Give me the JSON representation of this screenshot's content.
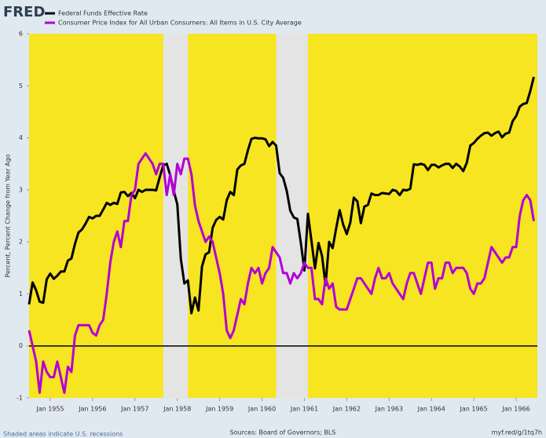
{
  "chart_data": {
    "type": "line",
    "logo": "FRED",
    "y_label": "Percent, Percent Change from Year Ago",
    "note": "Shaded areas indicate U.S. recessions",
    "source": "Sources: Board of Governors; BLS",
    "link": "myf.red/g/1tq7h",
    "background": "#f7e521",
    "recession_color": "#e4e4e4",
    "recessions": [
      {
        "start": "1957-09",
        "end": "1958-04"
      },
      {
        "start": "1960-05",
        "end": "1961-02"
      }
    ],
    "xlim": [
      "1954-07",
      "1966-07"
    ],
    "ylim": [
      -1,
      6
    ],
    "yticks": [
      -1,
      0,
      1,
      2,
      3,
      4,
      5,
      6
    ],
    "xticks": [
      {
        "value": "1955-01",
        "label": "Jan 1955"
      },
      {
        "value": "1956-01",
        "label": "Jan 1956"
      },
      {
        "value": "1957-01",
        "label": "Jan 1957"
      },
      {
        "value": "1958-01",
        "label": "Jan 1958"
      },
      {
        "value": "1959-01",
        "label": "Jan 1959"
      },
      {
        "value": "1960-01",
        "label": "Jan 1960"
      },
      {
        "value": "1961-01",
        "label": "Jan 1961"
      },
      {
        "value": "1962-01",
        "label": "Jan 1962"
      },
      {
        "value": "1963-01",
        "label": "Jan 1963"
      },
      {
        "value": "1964-01",
        "label": "Jan 1964"
      },
      {
        "value": "1965-01",
        "label": "Jan 1965"
      },
      {
        "value": "1966-01",
        "label": "Jan 1966"
      }
    ],
    "x": [
      "1954-07",
      "1954-08",
      "1954-09",
      "1954-10",
      "1954-11",
      "1954-12",
      "1955-01",
      "1955-02",
      "1955-03",
      "1955-04",
      "1955-05",
      "1955-06",
      "1955-07",
      "1955-08",
      "1955-09",
      "1955-10",
      "1955-11",
      "1955-12",
      "1956-01",
      "1956-02",
      "1956-03",
      "1956-04",
      "1956-05",
      "1956-06",
      "1956-07",
      "1956-08",
      "1956-09",
      "1956-10",
      "1956-11",
      "1956-12",
      "1957-01",
      "1957-02",
      "1957-03",
      "1957-04",
      "1957-05",
      "1957-06",
      "1957-07",
      "1957-08",
      "1957-09",
      "1957-10",
      "1957-11",
      "1957-12",
      "1958-01",
      "1958-02",
      "1958-03",
      "1958-04",
      "1958-05",
      "1958-06",
      "1958-07",
      "1958-08",
      "1958-09",
      "1958-10",
      "1958-11",
      "1958-12",
      "1959-01",
      "1959-02",
      "1959-03",
      "1959-04",
      "1959-05",
      "1959-06",
      "1959-07",
      "1959-08",
      "1959-09",
      "1959-10",
      "1959-11",
      "1959-12",
      "1960-01",
      "1960-02",
      "1960-03",
      "1960-04",
      "1960-05",
      "1960-06",
      "1960-07",
      "1960-08",
      "1960-09",
      "1960-10",
      "1960-11",
      "1960-12",
      "1961-01",
      "1961-02",
      "1961-03",
      "1961-04",
      "1961-05",
      "1961-06",
      "1961-07",
      "1961-08",
      "1961-09",
      "1961-10",
      "1961-11",
      "1961-12",
      "1962-01",
      "1962-02",
      "1962-03",
      "1962-04",
      "1962-05",
      "1962-06",
      "1962-07",
      "1962-08",
      "1962-09",
      "1962-10",
      "1962-11",
      "1962-12",
      "1963-01",
      "1963-02",
      "1963-03",
      "1963-04",
      "1963-05",
      "1963-06",
      "1963-07",
      "1963-08",
      "1963-09",
      "1963-10",
      "1963-11",
      "1963-12",
      "1964-01",
      "1964-02",
      "1964-03",
      "1964-04",
      "1964-05",
      "1964-06",
      "1964-07",
      "1964-08",
      "1964-09",
      "1964-10",
      "1964-11",
      "1964-12",
      "1965-01",
      "1965-02",
      "1965-03",
      "1965-04",
      "1965-05",
      "1965-06",
      "1965-07",
      "1965-08",
      "1965-09",
      "1965-10",
      "1965-11",
      "1965-12",
      "1966-01",
      "1966-02",
      "1966-03",
      "1966-04",
      "1966-05",
      "1966-06"
    ],
    "series": [
      {
        "name": "Federal Funds Effective Rate",
        "color": "#000000",
        "values": [
          0.8,
          1.22,
          1.07,
          0.85,
          0.83,
          1.28,
          1.39,
          1.29,
          1.35,
          1.43,
          1.43,
          1.64,
          1.68,
          1.96,
          2.18,
          2.24,
          2.35,
          2.48,
          2.45,
          2.5,
          2.5,
          2.62,
          2.75,
          2.71,
          2.75,
          2.73,
          2.95,
          2.96,
          2.88,
          2.94,
          2.84,
          3.0,
          2.96,
          3.0,
          3.0,
          3.0,
          2.99,
          3.24,
          3.47,
          3.5,
          3.28,
          2.98,
          2.72,
          1.67,
          1.2,
          1.26,
          0.63,
          0.93,
          0.68,
          1.53,
          1.76,
          1.8,
          2.27,
          2.42,
          2.48,
          2.43,
          2.8,
          2.96,
          2.9,
          3.39,
          3.47,
          3.5,
          3.76,
          3.98,
          4.0,
          3.99,
          3.99,
          3.97,
          3.84,
          3.92,
          3.85,
          3.32,
          3.23,
          2.98,
          2.6,
          2.47,
          2.44,
          1.98,
          1.45,
          2.54,
          2.02,
          1.49,
          1.98,
          1.73,
          1.17,
          2.0,
          1.88,
          2.26,
          2.61,
          2.33,
          2.15,
          2.37,
          2.85,
          2.78,
          2.36,
          2.68,
          2.71,
          2.93,
          2.9,
          2.9,
          2.94,
          2.93,
          2.92,
          3.0,
          2.98,
          2.9,
          3.0,
          2.99,
          3.02,
          3.49,
          3.48,
          3.5,
          3.48,
          3.38,
          3.48,
          3.48,
          3.43,
          3.47,
          3.5,
          3.5,
          3.42,
          3.5,
          3.45,
          3.36,
          3.52,
          3.85,
          3.9,
          3.98,
          4.04,
          4.09,
          4.1,
          4.04,
          4.09,
          4.12,
          4.01,
          4.08,
          4.1,
          4.32,
          4.42,
          4.6,
          4.65,
          4.67,
          4.9,
          5.17
        ]
      },
      {
        "name": "Consumer Price Index for All Urban Consumers: All Items in U.S. City Average",
        "color": "#b300d6",
        "values": [
          0.3,
          0.0,
          -0.3,
          -0.9,
          -0.3,
          -0.5,
          -0.6,
          -0.6,
          -0.3,
          -0.6,
          -0.9,
          -0.4,
          -0.5,
          0.2,
          0.4,
          0.4,
          0.4,
          0.4,
          0.25,
          0.2,
          0.4,
          0.5,
          1.0,
          1.6,
          2.0,
          2.2,
          1.9,
          2.4,
          2.4,
          2.9,
          3.0,
          3.5,
          3.6,
          3.7,
          3.6,
          3.5,
          3.3,
          3.5,
          3.5,
          2.9,
          3.3,
          2.9,
          3.5,
          3.3,
          3.6,
          3.6,
          3.3,
          2.7,
          2.4,
          2.2,
          2.0,
          2.1,
          2.0,
          1.7,
          1.4,
          1.0,
          0.3,
          0.15,
          0.3,
          0.6,
          0.9,
          0.8,
          1.2,
          1.5,
          1.4,
          1.5,
          1.2,
          1.4,
          1.5,
          1.9,
          1.8,
          1.7,
          1.4,
          1.4,
          1.2,
          1.4,
          1.3,
          1.4,
          1.6,
          1.5,
          1.5,
          0.9,
          0.9,
          0.8,
          1.3,
          1.1,
          1.2,
          0.75,
          0.7,
          0.7,
          0.7,
          0.9,
          1.1,
          1.3,
          1.3,
          1.2,
          1.1,
          1.0,
          1.3,
          1.5,
          1.3,
          1.3,
          1.4,
          1.2,
          1.1,
          1.0,
          0.9,
          1.2,
          1.4,
          1.4,
          1.2,
          1.0,
          1.3,
          1.6,
          1.6,
          1.1,
          1.3,
          1.3,
          1.6,
          1.6,
          1.4,
          1.5,
          1.5,
          1.5,
          1.4,
          1.1,
          1.0,
          1.2,
          1.2,
          1.3,
          1.6,
          1.9,
          1.8,
          1.7,
          1.6,
          1.7,
          1.7,
          1.9,
          1.9,
          2.5,
          2.8,
          2.9,
          2.8,
          2.4
        ]
      }
    ]
  }
}
